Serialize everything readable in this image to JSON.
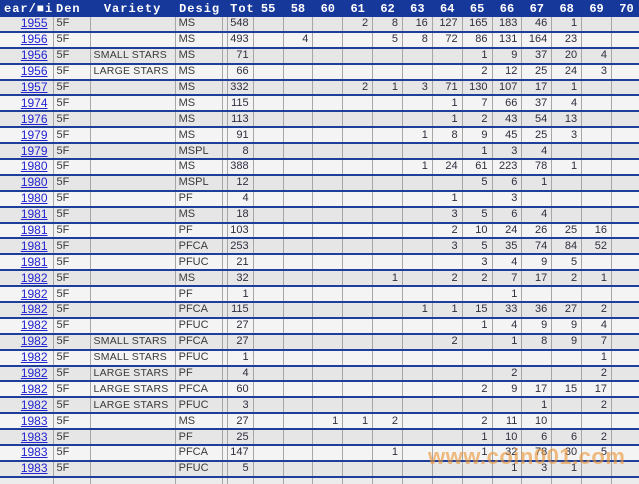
{
  "table": {
    "headers": {
      "year": "ear/■i",
      "den": "Den",
      "variety": "Variety",
      "desig": "Desig",
      "tot": "Tot",
      "grades": [
        "55",
        "58",
        "60",
        "61",
        "62",
        "63",
        "64",
        "65",
        "66",
        "67",
        "68",
        "69",
        "70"
      ]
    },
    "rows": [
      {
        "year": "1955",
        "den": "5F",
        "variety": "",
        "desig": "MS",
        "tot": "548",
        "grades": [
          "",
          "",
          "",
          "2",
          "8",
          "16",
          "127",
          "165",
          "183",
          "46",
          "1",
          "",
          ""
        ]
      },
      {
        "year": "1956",
        "den": "5F",
        "variety": "",
        "desig": "MS",
        "tot": "493",
        "grades": [
          "",
          "4",
          "",
          "",
          "5",
          "8",
          "72",
          "86",
          "131",
          "164",
          "23",
          "",
          ""
        ]
      },
      {
        "year": "1956",
        "den": "5F",
        "variety": "SMALL STARS",
        "desig": "MS",
        "tot": "71",
        "grades": [
          "",
          "",
          "",
          "",
          "",
          "",
          "",
          "1",
          "9",
          "37",
          "20",
          "4",
          ""
        ]
      },
      {
        "year": "1956",
        "den": "5F",
        "variety": "LARGE STARS",
        "desig": "MS",
        "tot": "66",
        "grades": [
          "",
          "",
          "",
          "",
          "",
          "",
          "",
          "2",
          "12",
          "25",
          "24",
          "3",
          ""
        ]
      },
      {
        "year": "1957",
        "den": "5F",
        "variety": "",
        "desig": "MS",
        "tot": "332",
        "grades": [
          "",
          "",
          "",
          "2",
          "1",
          "3",
          "71",
          "130",
          "107",
          "17",
          "1",
          "",
          ""
        ]
      },
      {
        "year": "1974",
        "den": "5F",
        "variety": "",
        "desig": "MS",
        "tot": "115",
        "grades": [
          "",
          "",
          "",
          "",
          "",
          "",
          "1",
          "7",
          "66",
          "37",
          "4",
          "",
          ""
        ]
      },
      {
        "year": "1976",
        "den": "5F",
        "variety": "",
        "desig": "MS",
        "tot": "113",
        "grades": [
          "",
          "",
          "",
          "",
          "",
          "",
          "1",
          "2",
          "43",
          "54",
          "13",
          "",
          ""
        ]
      },
      {
        "year": "1979",
        "den": "5F",
        "variety": "",
        "desig": "MS",
        "tot": "91",
        "grades": [
          "",
          "",
          "",
          "",
          "",
          "1",
          "8",
          "9",
          "45",
          "25",
          "3",
          "",
          ""
        ]
      },
      {
        "year": "1979",
        "den": "5F",
        "variety": "",
        "desig": "MSPL",
        "tot": "8",
        "grades": [
          "",
          "",
          "",
          "",
          "",
          "",
          "",
          "1",
          "3",
          "4",
          "",
          "",
          ""
        ]
      },
      {
        "year": "1980",
        "den": "5F",
        "variety": "",
        "desig": "MS",
        "tot": "388",
        "grades": [
          "",
          "",
          "",
          "",
          "",
          "1",
          "24",
          "61",
          "223",
          "78",
          "1",
          "",
          ""
        ]
      },
      {
        "year": "1980",
        "den": "5F",
        "variety": "",
        "desig": "MSPL",
        "tot": "12",
        "grades": [
          "",
          "",
          "",
          "",
          "",
          "",
          "",
          "5",
          "6",
          "1",
          "",
          "",
          ""
        ]
      },
      {
        "year": "1980",
        "den": "5F",
        "variety": "",
        "desig": "PF",
        "tot": "4",
        "grades": [
          "",
          "",
          "",
          "",
          "",
          "",
          "1",
          "",
          "3",
          "",
          "",
          "",
          ""
        ]
      },
      {
        "year": "1981",
        "den": "5F",
        "variety": "",
        "desig": "MS",
        "tot": "18",
        "grades": [
          "",
          "",
          "",
          "",
          "",
          "",
          "3",
          "5",
          "6",
          "4",
          "",
          "",
          ""
        ]
      },
      {
        "year": "1981",
        "den": "5F",
        "variety": "",
        "desig": "PF",
        "tot": "103",
        "grades": [
          "",
          "",
          "",
          "",
          "",
          "",
          "2",
          "10",
          "24",
          "26",
          "25",
          "16",
          ""
        ]
      },
      {
        "year": "1981",
        "den": "5F",
        "variety": "",
        "desig": "PFCA",
        "tot": "253",
        "grades": [
          "",
          "",
          "",
          "",
          "",
          "",
          "3",
          "5",
          "35",
          "74",
          "84",
          "52",
          ""
        ]
      },
      {
        "year": "1981",
        "den": "5F",
        "variety": "",
        "desig": "PFUC",
        "tot": "21",
        "grades": [
          "",
          "",
          "",
          "",
          "",
          "",
          "",
          "3",
          "4",
          "9",
          "5",
          "",
          ""
        ]
      },
      {
        "year": "1982",
        "den": "5F",
        "variety": "",
        "desig": "MS",
        "tot": "32",
        "grades": [
          "",
          "",
          "",
          "",
          "1",
          "",
          "2",
          "2",
          "7",
          "17",
          "2",
          "1",
          ""
        ]
      },
      {
        "year": "1982",
        "den": "5F",
        "variety": "",
        "desig": "PF",
        "tot": "1",
        "grades": [
          "",
          "",
          "",
          "",
          "",
          "",
          "",
          "",
          "1",
          "",
          "",
          "",
          ""
        ]
      },
      {
        "year": "1982",
        "den": "5F",
        "variety": "",
        "desig": "PFCA",
        "tot": "115",
        "grades": [
          "",
          "",
          "",
          "",
          "",
          "1",
          "1",
          "15",
          "33",
          "36",
          "27",
          "2",
          ""
        ]
      },
      {
        "year": "1982",
        "den": "5F",
        "variety": "",
        "desig": "PFUC",
        "tot": "27",
        "grades": [
          "",
          "",
          "",
          "",
          "",
          "",
          "",
          "1",
          "4",
          "9",
          "9",
          "4",
          ""
        ]
      },
      {
        "year": "1982",
        "den": "5F",
        "variety": "SMALL STARS",
        "desig": "PFCA",
        "tot": "27",
        "grades": [
          "",
          "",
          "",
          "",
          "",
          "",
          "2",
          "",
          "1",
          "8",
          "9",
          "7",
          ""
        ]
      },
      {
        "year": "1982",
        "den": "5F",
        "variety": "SMALL STARS",
        "desig": "PFUC",
        "tot": "1",
        "grades": [
          "",
          "",
          "",
          "",
          "",
          "",
          "",
          "",
          "",
          "",
          "",
          "1",
          ""
        ]
      },
      {
        "year": "1982",
        "den": "5F",
        "variety": "LARGE STARS",
        "desig": "PF",
        "tot": "4",
        "grades": [
          "",
          "",
          "",
          "",
          "",
          "",
          "",
          "",
          "2",
          "",
          "",
          "2",
          ""
        ]
      },
      {
        "year": "1982",
        "den": "5F",
        "variety": "LARGE STARS",
        "desig": "PFCA",
        "tot": "60",
        "grades": [
          "",
          "",
          "",
          "",
          "",
          "",
          "",
          "2",
          "9",
          "17",
          "15",
          "17",
          ""
        ]
      },
      {
        "year": "1982",
        "den": "5F",
        "variety": "LARGE STARS",
        "desig": "PFUC",
        "tot": "3",
        "grades": [
          "",
          "",
          "",
          "",
          "",
          "",
          "",
          "",
          "",
          "1",
          "",
          "2",
          ""
        ]
      },
      {
        "year": "1983",
        "den": "5F",
        "variety": "",
        "desig": "MS",
        "tot": "27",
        "grades": [
          "",
          "",
          "1",
          "1",
          "2",
          "",
          "",
          "2",
          "11",
          "10",
          "",
          "",
          ""
        ]
      },
      {
        "year": "1983",
        "den": "5F",
        "variety": "",
        "desig": "PF",
        "tot": "25",
        "grades": [
          "",
          "",
          "",
          "",
          "",
          "",
          "",
          "1",
          "10",
          "6",
          "6",
          "2",
          ""
        ]
      },
      {
        "year": "1983",
        "den": "5F",
        "variety": "",
        "desig": "PFCA",
        "tot": "147",
        "grades": [
          "",
          "",
          "",
          "",
          "1",
          "",
          "",
          "1",
          "32",
          "78",
          "30",
          "5",
          ""
        ]
      },
      {
        "year": "1983",
        "den": "5F",
        "variety": "",
        "desig": "PFUC",
        "tot": "5",
        "grades": [
          "",
          "",
          "",
          "",
          "",
          "",
          "",
          "",
          "1",
          "3",
          "1",
          "",
          ""
        ]
      }
    ]
  },
  "watermark": {
    "text": "www.coin001.com",
    "color": "#EA9436"
  },
  "colors": {
    "header_background": "#17389B",
    "row_separator": "#1D3F99",
    "gridline": "#A6A6A6",
    "row_dark": "#E6E6E6",
    "row_light": "#F4F4F4",
    "year_link": "#2424CF",
    "data_text": "#2E2E3E"
  }
}
